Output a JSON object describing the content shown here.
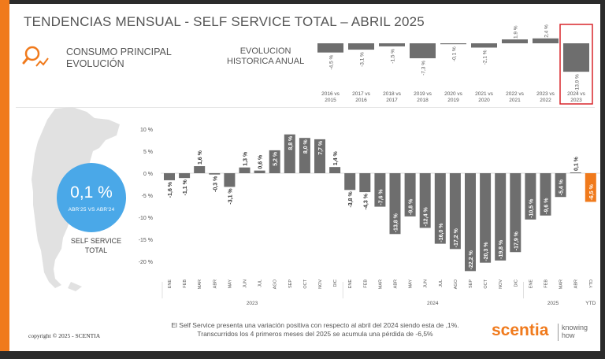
{
  "header": {
    "title": "TENDENCIAS MENSUAL - SELF SERVICE TOTAL –   ABRIL 2025",
    "subtitle_line1": "CONSUMO PRINCIPAL",
    "subtitle_line2": "EVOLUCIÓN",
    "hist_title_line1": "EVOLUCION",
    "hist_title_line2": "HISTORICA ANUAL"
  },
  "kpi": {
    "value": "0,1 %",
    "comparison": "ABR'25 VS ABR'24",
    "label_line1": "SELF SERVICE",
    "label_line2": "TOTAL"
  },
  "footer": {
    "note_line1": "El Self Service presenta una variación positiva con respecto al abril del 2024 siendo esta de ,1%.",
    "note_line2": "Transcurridos los 4 primeros meses del 2025 se acumula una pérdida de -6,5%",
    "copyright": "copyright © 2025 - SCENTIA",
    "brand": "scentia",
    "brand_tag1": "knowing",
    "brand_tag2": "how"
  },
  "colors": {
    "bar": "#6e6e6e",
    "ytd_bar": "#f07a1c",
    "accent": "#f07a1c",
    "kpi_circle": "#4aa8e8",
    "highlight_box": "#d9262c"
  },
  "chart_data": [
    {
      "type": "bar",
      "categories": [
        "2016 vs 2015",
        "2017 vs 2016",
        "2018 vs 2017",
        "2019 vs 2018",
        "2020 vs 2019",
        "2021 vs 2020",
        "2022 vs 2021",
        "2023 vs 2022",
        "2024 vs 2023"
      ],
      "values": [
        -4.5,
        -3.1,
        -1.5,
        -7.3,
        -0.1,
        -2.1,
        1.9,
        2.4,
        -13.9
      ],
      "labels": [
        "-4,5 %",
        "-3,1 %",
        "-1,5 %",
        "-7,3 %",
        "-0,1 %",
        "-2,1 %",
        "1,9 %",
        "2,4 %",
        "-13,9 %"
      ],
      "highlighted": "2024 vs 2023"
    },
    {
      "type": "bar",
      "months": [
        "ENE",
        "FEB",
        "MAR",
        "ABR",
        "MAY",
        "JUN",
        "JUL",
        "AGO",
        "SEP",
        "OCT",
        "NOV",
        "DIC",
        "ENE",
        "FEB",
        "MAR",
        "ABR",
        "MAY",
        "JUN",
        "JUL",
        "AGO",
        "SEP",
        "OCT",
        "NOV",
        "DIC",
        "ENE",
        "FEB",
        "MAR",
        "ABR",
        "YTD"
      ],
      "values": [
        -1.6,
        -1.1,
        1.6,
        -0.3,
        -3.1,
        1.3,
        0.6,
        5.2,
        8.8,
        8.0,
        7.7,
        1.4,
        -3.8,
        -4.3,
        -7.6,
        -13.8,
        -9.8,
        -12.4,
        -16.0,
        -17.2,
        -22.2,
        -20.3,
        -19.8,
        -17.9,
        -10.5,
        -9.6,
        -5.4,
        0.1,
        -6.5
      ],
      "labels": [
        "-1,6 %",
        "-1,1 %",
        "1,6 %",
        "-0,3 %",
        "-3,1 %",
        "1,3 %",
        "0,6 %",
        "5,2 %",
        "8,8 %",
        "8,0 %",
        "7,7 %",
        "1,4 %",
        "-3,8 %",
        "-4,3 %",
        "-7,6 %",
        "-13,8 %",
        "-9,8 %",
        "-12,4 %",
        "-16,0 %",
        "-17,2 %",
        "-22,2 %",
        "-20,3 %",
        "-19,8 %",
        "-17,9 %",
        "-10,5 %",
        "-9,6 %",
        "-5,4 %",
        "0,1 %",
        "-6,5 %"
      ],
      "year_groups": [
        {
          "label": "2023",
          "start": 0,
          "end": 11
        },
        {
          "label": "2024",
          "start": 12,
          "end": 23
        },
        {
          "label": "2025",
          "start": 24,
          "end": 27
        },
        {
          "label": "YTD",
          "start": 28,
          "end": 28
        }
      ],
      "yticks": [
        10,
        5,
        0,
        -5,
        -10,
        -15,
        -20
      ],
      "ytick_labels": [
        "10 %",
        "5 %",
        "0 %",
        "-5 %",
        "-10 %",
        "-15 %",
        "-20 %"
      ],
      "ylim": [
        -22.5,
        11
      ],
      "ytd_index": 28
    }
  ]
}
